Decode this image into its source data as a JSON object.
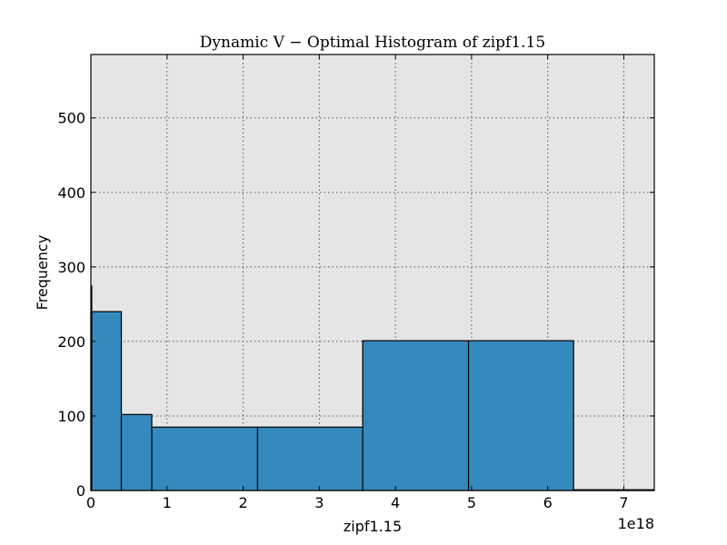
{
  "chart_data": {
    "type": "bar",
    "title": "Dynamic V − Optimal Histogram of zipf1.15",
    "xlabel": "zipf1.15",
    "ylabel": "Frequency",
    "x_offset_label": "1e18",
    "xlim": [
      0,
      7.4
    ],
    "ylim": [
      0,
      585
    ],
    "x_ticks": [
      "0",
      "1",
      "2",
      "3",
      "4",
      "5",
      "6",
      "7"
    ],
    "y_ticks": [
      "0",
      "100",
      "200",
      "300",
      "400",
      "500"
    ],
    "grid": true,
    "bar_color": "#348abd",
    "background_color": "#e5e5e5",
    "bins": [
      {
        "x0": 0.0,
        "x1": 0.4,
        "value": 240
      },
      {
        "x0": 0.4,
        "x1": 0.8,
        "value": 102
      },
      {
        "x0": 0.8,
        "x1": 2.19,
        "value": 85
      },
      {
        "x0": 2.19,
        "x1": 3.57,
        "value": 85
      },
      {
        "x0": 3.57,
        "x1": 4.96,
        "value": 201
      },
      {
        "x0": 4.96,
        "x1": 6.34,
        "value": 201
      },
      {
        "x0": 6.34,
        "x1": 7.4,
        "value": 1
      }
    ],
    "edge_spike": {
      "x": 0.0,
      "value": 275
    }
  }
}
